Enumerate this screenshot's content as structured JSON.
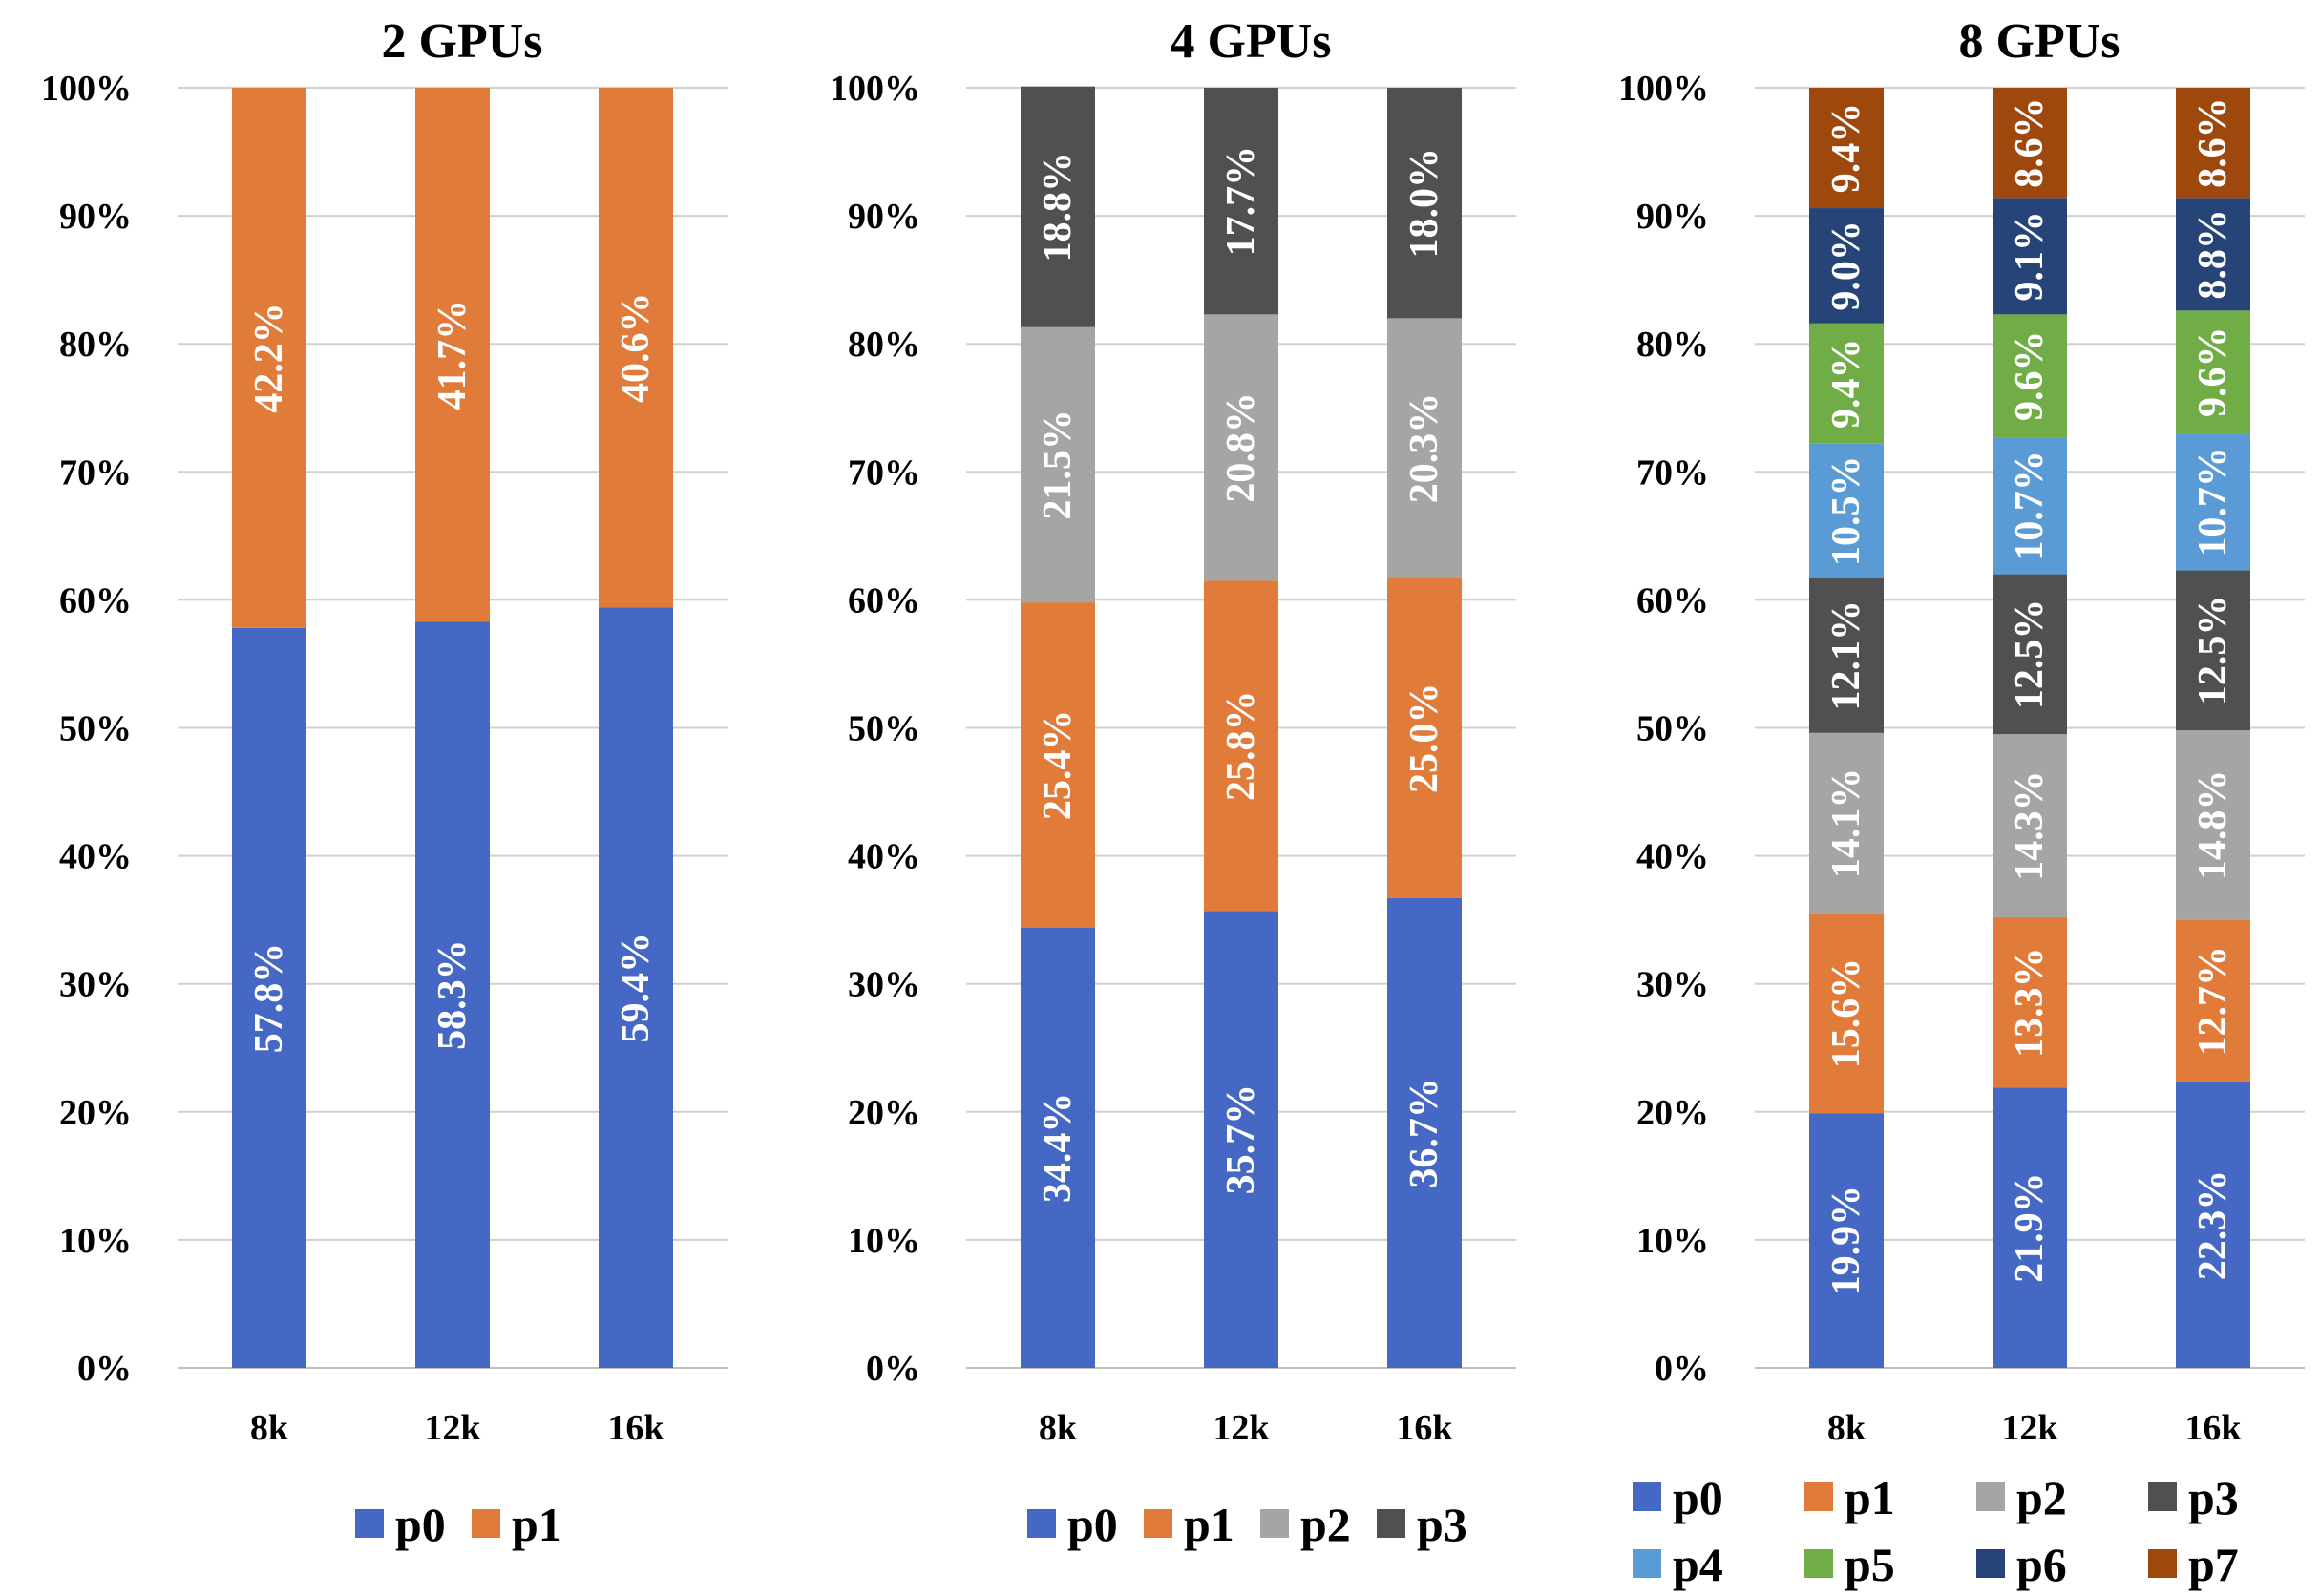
{
  "chart_data": [
    {
      "type": "bar",
      "stacked": true,
      "title": "2 GPUs",
      "categories": [
        "8k",
        "12k",
        "16k"
      ],
      "ylim": [
        0,
        100
      ],
      "yticks": [
        "0%",
        "10%",
        "20%",
        "30%",
        "40%",
        "50%",
        "60%",
        "70%",
        "80%",
        "90%",
        "100%"
      ],
      "series": [
        {
          "name": "p0",
          "color": "#4468c4",
          "values": [
            57.8,
            58.3,
            59.4
          ],
          "labels": [
            "57.8%",
            "58.3%",
            "59.4%"
          ]
        },
        {
          "name": "p1",
          "color": "#e07b39",
          "values": [
            42.2,
            41.7,
            40.6
          ],
          "labels": [
            "42.2%",
            "41.7%",
            "40.6%"
          ]
        }
      ],
      "legend": "bottom"
    },
    {
      "type": "bar",
      "stacked": true,
      "title": "4 GPUs",
      "categories": [
        "8k",
        "12k",
        "16k"
      ],
      "ylim": [
        0,
        100
      ],
      "yticks": [
        "0%",
        "10%",
        "20%",
        "30%",
        "40%",
        "50%",
        "60%",
        "70%",
        "80%",
        "90%",
        "100%"
      ],
      "series": [
        {
          "name": "p0",
          "color": "#4468c4",
          "values": [
            34.4,
            35.7,
            36.7
          ],
          "labels": [
            "34.4%",
            "35.7%",
            "36.7%"
          ]
        },
        {
          "name": "p1",
          "color": "#e07b39",
          "values": [
            25.4,
            25.8,
            25.0
          ],
          "labels": [
            "25.4%",
            "25.8%",
            "25.0%"
          ]
        },
        {
          "name": "p2",
          "color": "#a5a5a5",
          "values": [
            21.5,
            20.8,
            20.3
          ],
          "labels": [
            "21.5%",
            "20.8%",
            "20.3%"
          ]
        },
        {
          "name": "p3",
          "color": "#505050",
          "values": [
            18.8,
            17.7,
            18.0
          ],
          "labels": [
            "18.8%",
            "17.7%",
            "18.0%"
          ]
        }
      ],
      "legend": "bottom"
    },
    {
      "type": "bar",
      "stacked": true,
      "title": "8 GPUs",
      "categories": [
        "8k",
        "12k",
        "16k"
      ],
      "ylim": [
        0,
        100
      ],
      "yticks": [
        "0%",
        "10%",
        "20%",
        "30%",
        "40%",
        "50%",
        "60%",
        "70%",
        "80%",
        "90%",
        "100%"
      ],
      "series": [
        {
          "name": "p0",
          "color": "#4468c4",
          "values": [
            19.9,
            21.9,
            22.3
          ],
          "labels": [
            "19.9%",
            "21.9%",
            "22.3%"
          ]
        },
        {
          "name": "p1",
          "color": "#e07b39",
          "values": [
            15.6,
            13.3,
            12.7
          ],
          "labels": [
            "15.6%",
            "13.3%",
            "12.7%"
          ]
        },
        {
          "name": "p2",
          "color": "#a5a5a5",
          "values": [
            14.1,
            14.3,
            14.8
          ],
          "labels": [
            "14.1%",
            "14.3%",
            "14.8%"
          ]
        },
        {
          "name": "p3",
          "color": "#505050",
          "values": [
            12.1,
            12.5,
            12.5
          ],
          "labels": [
            "12.1%",
            "12.5%",
            "12.5%"
          ]
        },
        {
          "name": "p4",
          "color": "#5b9bd5",
          "values": [
            10.5,
            10.7,
            10.7
          ],
          "labels": [
            "10.5%",
            "10.7%",
            "10.7%"
          ]
        },
        {
          "name": "p5",
          "color": "#70ad47",
          "values": [
            9.4,
            9.6,
            9.6
          ],
          "labels": [
            "9.4%",
            "9.6%",
            "9.6%"
          ]
        },
        {
          "name": "p6",
          "color": "#264478",
          "values": [
            9.0,
            9.1,
            8.8
          ],
          "labels": [
            "9.0%",
            "9.1%",
            "8.8%"
          ]
        },
        {
          "name": "p7",
          "color": "#9e480e",
          "values": [
            9.4,
            8.6,
            8.6
          ],
          "labels": [
            "9.4%",
            "8.6%",
            "8.6%"
          ]
        }
      ],
      "legend": "bottom"
    }
  ]
}
